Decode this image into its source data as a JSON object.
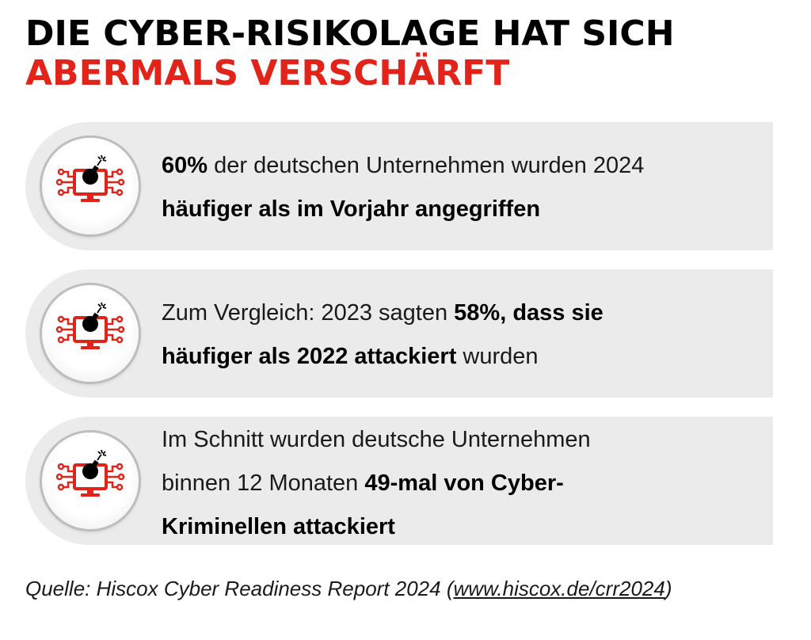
{
  "title": {
    "line1": "DIE CYBER-RISIKOLAGE HAT SICH",
    "line2": "ABERMALS VERSCHÄRFT"
  },
  "colors": {
    "accent": "#e2231a",
    "card_background": "#ebebeb",
    "text": "#1a1a1a"
  },
  "icon": "bomb-monitor-circuit-icon",
  "cards": [
    {
      "a_bold": "60%",
      "a": " der deutschen Unternehmen wurden 2024",
      "b_bold": "häufiger als im Vorjahr angegriffen"
    },
    {
      "a": "Zum Vergleich: 2023 sagten ",
      "a_bold": "58%, dass sie",
      "b_bold": "häufiger als 2022 attackiert",
      "b": " wurden"
    },
    {
      "a": "Im Schnitt wurden deutsche Unternehmen",
      "b": "binnen 12 Monaten ",
      "b_bold": "49-mal von Cyber-",
      "c_bold": "Kriminellen attackiert"
    }
  ],
  "source": {
    "prefix": "Quelle: Hiscox Cyber Readiness Report 2024 (",
    "link": "www.hiscox.de/crr2024",
    "suffix": ")"
  }
}
